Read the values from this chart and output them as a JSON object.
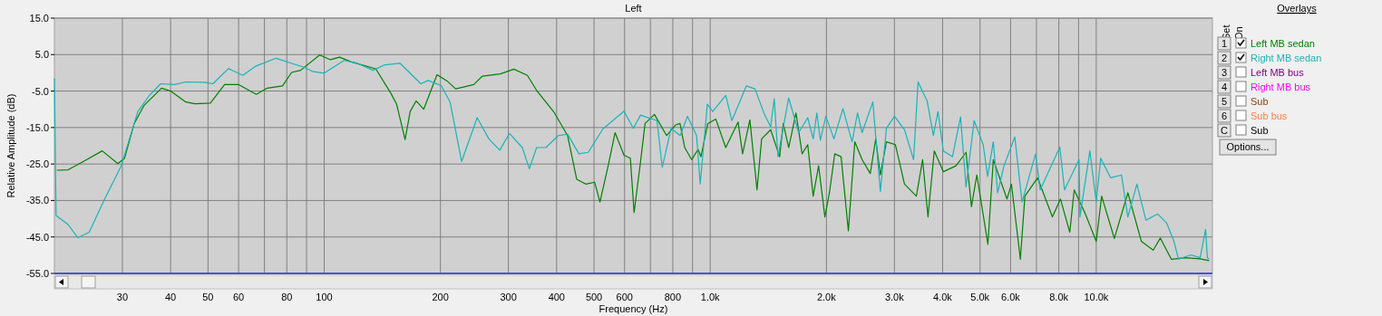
{
  "chart_data": {
    "type": "line",
    "title": "Left",
    "xlabel": "Frequency (Hz)",
    "ylabel": "Relative Amplitude (dB)",
    "legend_title": "Overlays",
    "legend": "right",
    "log": "x",
    "grid": true,
    "xlim": [
      20,
      20000
    ],
    "ylim": [
      -55,
      15
    ],
    "xticks": [
      {
        "value": 30,
        "label": "30"
      },
      {
        "value": 40,
        "label": "40"
      },
      {
        "value": 50,
        "label": "50"
      },
      {
        "value": 60,
        "label": "60"
      },
      {
        "value": 70,
        "label": null
      },
      {
        "value": 80,
        "label": "80"
      },
      {
        "value": 90,
        "label": null
      },
      {
        "value": 100,
        "label": "100"
      },
      {
        "value": 200,
        "label": "200"
      },
      {
        "value": 300,
        "label": "300"
      },
      {
        "value": 400,
        "label": "400"
      },
      {
        "value": 500,
        "label": "500"
      },
      {
        "value": 600,
        "label": "600"
      },
      {
        "value": 700,
        "label": null
      },
      {
        "value": 800,
        "label": "800"
      },
      {
        "value": 900,
        "label": null
      },
      {
        "value": 1000,
        "label": "1.0k"
      },
      {
        "value": 2000,
        "label": "2.0k"
      },
      {
        "value": 3000,
        "label": "3.0k"
      },
      {
        "value": 4000,
        "label": "4.0k"
      },
      {
        "value": 5000,
        "label": "5.0k"
      },
      {
        "value": 6000,
        "label": "6.0k"
      },
      {
        "value": 7000,
        "label": null
      },
      {
        "value": 8000,
        "label": "8.0k"
      },
      {
        "value": 9000,
        "label": null
      },
      {
        "value": 10000,
        "label": "10.0k"
      }
    ],
    "yticks": [
      {
        "value": 15,
        "label": "15.0"
      },
      {
        "value": 5,
        "label": "5.0"
      },
      {
        "value": -5,
        "label": "-5.0"
      },
      {
        "value": -15,
        "label": "-15.0"
      },
      {
        "value": -25,
        "label": "-25.0"
      },
      {
        "value": -35,
        "label": "-35.0"
      },
      {
        "value": -45,
        "label": "-45.0"
      },
      {
        "value": -55,
        "label": "-55.0"
      }
    ],
    "annotations": [
      "Set",
      "On",
      "Options...",
      "1",
      "2",
      "3",
      "4",
      "5",
      "6",
      "C",
      "Left MB bus",
      "Right MB bus",
      "Sub",
      "Sub bus",
      "Sub"
    ],
    "series": [
      {
        "name": "Left MB sedan",
        "color": "#008000",
        "x": [
          20.3,
          21.7,
          23.8,
          26.6,
          29.2,
          30.4,
          32.2,
          34.1,
          37.9,
          40,
          43.8,
          46.3,
          50.7,
          55.2,
          59.9,
          66.7,
          71.2,
          78,
          82.3,
          86.9,
          97.3,
          103.8,
          109.6,
          117.6,
          136,
          149,
          154,
          162,
          167,
          173,
          181,
          196,
          209,
          219,
          244,
          257,
          286,
          310,
          336,
          355,
          395,
          427,
          451,
          476,
          502,
          518,
          544,
          567,
          598,
          621,
          635,
          660,
          678,
          717,
          771,
          813,
          835,
          859,
          895,
          930,
          946,
          986,
          1034,
          1097,
          1181,
          1213,
          1267,
          1322,
          1359,
          1434,
          1513,
          1546,
          1597,
          1668,
          1730,
          1789,
          1848,
          1909,
          1982,
          2036,
          2102,
          2183,
          2280,
          2369,
          2474,
          2598,
          2684,
          2759,
          2861,
          3018,
          3187,
          3420,
          3550,
          3666,
          3806,
          4017,
          4333,
          4600,
          4750,
          4906,
          5240,
          5412,
          5870,
          6030,
          6360,
          6535,
          7050,
          7700,
          8080,
          8540,
          8770,
          9372,
          10000,
          10330,
          11140,
          12080,
          13090,
          14050,
          14660,
          15650,
          16960,
          18590,
          19600
        ],
        "values": [
          -26.7,
          -26.6,
          -24.3,
          -21.4,
          -24.9,
          -23.4,
          -13.9,
          -9,
          -4.2,
          -5,
          -8,
          -8.5,
          -8.3,
          -3.2,
          -3.2,
          -5.9,
          -4.2,
          -3.6,
          0.1,
          0.7,
          4.9,
          3.6,
          4.3,
          3,
          1.1,
          -5.7,
          -8.6,
          -18.3,
          -10.6,
          -7.7,
          -10,
          -0.5,
          -2.4,
          -4.4,
          -3.2,
          -0.9,
          -0.3,
          1,
          -0.7,
          -4.8,
          -11,
          -17.2,
          -29.2,
          -30.5,
          -30,
          -35.4,
          -25.5,
          -16.4,
          -22.6,
          -23.4,
          -38.3,
          -24.3,
          -13.9,
          -11.4,
          -17.2,
          -14.3,
          -13.9,
          -20.5,
          -23.8,
          -21,
          -23,
          -13.9,
          -12.7,
          -20.5,
          -13.5,
          -22.2,
          -12.9,
          -32.1,
          -18.1,
          -15.6,
          -23,
          -13.9,
          -20.5,
          -11,
          -22.2,
          -19.7,
          -33.8,
          -25.5,
          -39.5,
          -32.9,
          -22.2,
          -23,
          -43.3,
          -18.9,
          -23.8,
          -27.6,
          -18.1,
          -28,
          -18.9,
          -19.7,
          -30.5,
          -33.8,
          -23.8,
          -39.5,
          -21.4,
          -27.1,
          -25.5,
          -21.8,
          -36.7,
          -28,
          -47,
          -23.8,
          -34.6,
          -30.5,
          -51.1,
          -33.8,
          -28.8,
          -39.5,
          -34.6,
          -43.7,
          -32.1,
          -38.7,
          -46.2,
          -33.8,
          -45.4,
          -32.9,
          -46.2,
          -48.6,
          -45.3,
          -51.1,
          -50.7,
          -51,
          -51.5
        ]
      },
      {
        "name": "Right MB sedan",
        "color": "#1ab3b8",
        "x": [
          20,
          20.2,
          21.7,
          23,
          24.6,
          27,
          29.8,
          32.9,
          35.3,
          37.7,
          40.9,
          43.8,
          48.8,
          51.5,
          56.5,
          61.5,
          66.4,
          75.1,
          82.3,
          88.3,
          93.2,
          100,
          112.6,
          122,
          133.8,
          143.6,
          157.3,
          178,
          186,
          201,
          212,
          227,
          249,
          267,
          285,
          302,
          326,
          340,
          355,
          375,
          404,
          427,
          457,
          483,
          527,
          598,
          632,
          660,
          728,
          751,
          792,
          836,
          873,
          922,
          942,
          983,
          1015,
          1097,
          1138,
          1240,
          1306,
          1382,
          1434,
          1465,
          1498,
          1597,
          1695,
          1789,
          1848,
          1889,
          1929,
          1993,
          2092,
          2207,
          2331,
          2408,
          2474,
          2638,
          2759,
          2861,
          3003,
          3187,
          3364,
          3455,
          3647,
          3785,
          3891,
          4017,
          4241,
          4452,
          4600,
          4827,
          5095,
          5231,
          5412,
          5554,
          5768,
          6153,
          6424,
          6966,
          7157,
          8050,
          8278,
          9025,
          9074,
          9628,
          10000,
          10271,
          10900,
          11628,
          12076,
          12745,
          13452,
          14428,
          15227,
          15899,
          16334,
          17615,
          18591,
          19202,
          19410,
          19600
        ],
        "values": [
          -1.5,
          -39.1,
          -41.6,
          -45.2,
          -43.7,
          -34.6,
          -25.5,
          -10.6,
          -6.1,
          -3,
          -3.2,
          -2.5,
          -2.6,
          -3,
          1.2,
          -0.7,
          1.8,
          4,
          2.6,
          1.6,
          0.4,
          -0.1,
          3.4,
          2.6,
          0.7,
          2.2,
          2.6,
          -3,
          -2.1,
          -3.5,
          -8.1,
          -24.3,
          -12.3,
          -18.1,
          -21.2,
          -16.6,
          -20.5,
          -26.3,
          -20.5,
          -20.5,
          -17.2,
          -16.8,
          -22.2,
          -21.8,
          -15.4,
          -10.5,
          -15.2,
          -11.6,
          -13.1,
          -25.9,
          -15.2,
          -17.2,
          -11.9,
          -17.2,
          -30.5,
          -8.6,
          -10.6,
          -6.2,
          -13.1,
          -3.6,
          -4.4,
          -11.4,
          -14.8,
          -7.1,
          -23,
          -6.9,
          -16.4,
          -12.3,
          -18.1,
          -11,
          -18.5,
          -11.9,
          -18.1,
          -9.8,
          -18.9,
          -11,
          -16.4,
          -8,
          -32.5,
          -15.2,
          -11.9,
          -15.6,
          -23.8,
          -2.5,
          -7.7,
          -17.2,
          -10.6,
          -21.4,
          -23,
          -12.1,
          -31.3,
          -13.1,
          -19.7,
          -28.4,
          -18.9,
          -32.9,
          -25.5,
          -17.6,
          -35.4,
          -22.2,
          -32.1,
          -20.4,
          -32.1,
          -23.8,
          -39.5,
          -21.4,
          -35.4,
          -23.4,
          -28.8,
          -28,
          -39.5,
          -30.5,
          -40.4,
          -38.7,
          -41.2,
          -46.2,
          -51.1,
          -49.9,
          -50.7,
          -42.9,
          -50.7,
          -51.1
        ]
      }
    ]
  }
}
